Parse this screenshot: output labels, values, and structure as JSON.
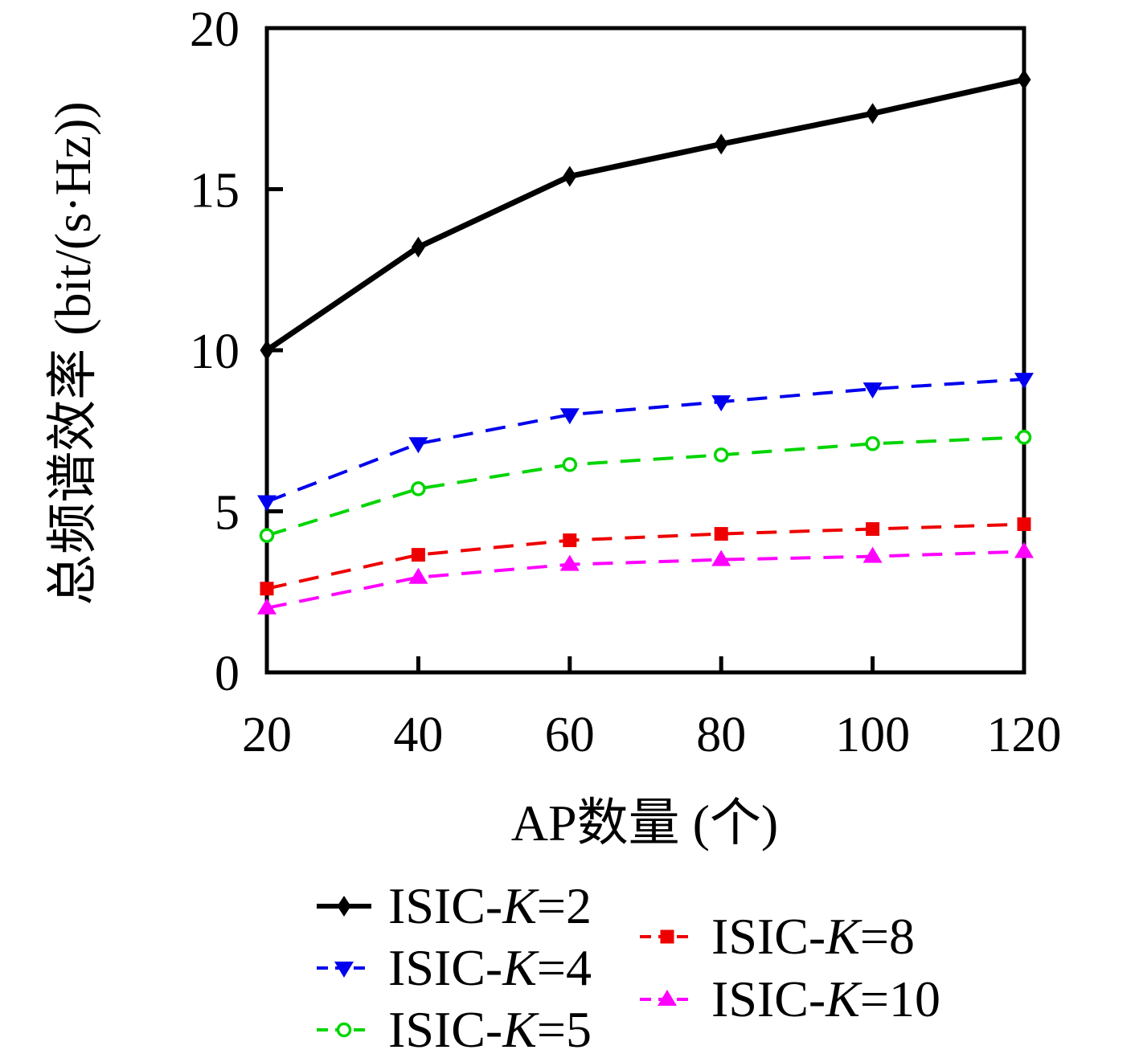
{
  "figure": {
    "background": "#ffffff",
    "text_color": "#000000"
  },
  "chart_data": {
    "type": "line",
    "title": "",
    "xlabel": "AP数量 (个)",
    "ylabel": "总频谱效率 (bit/(s·Hz))",
    "x": [
      20,
      40,
      60,
      80,
      100,
      120
    ],
    "xlim": [
      20,
      120
    ],
    "ylim": [
      0,
      20
    ],
    "xticks": [
      20,
      40,
      60,
      80,
      100,
      120
    ],
    "yticks": [
      0,
      5,
      10,
      15,
      20
    ],
    "grid": false,
    "legend_position": "below-plot-two-columns",
    "series": [
      {
        "name": "ISIC-K=2",
        "color": "#000000",
        "line_style": "solid",
        "marker": "diamond",
        "values": [
          10.0,
          13.2,
          15.4,
          16.4,
          17.35,
          18.4
        ]
      },
      {
        "name": "ISIC-K=4",
        "color": "#0000ee",
        "line_style": "dashed",
        "marker": "triangle-down",
        "values": [
          5.3,
          7.1,
          8.0,
          8.4,
          8.8,
          9.1
        ]
      },
      {
        "name": "ISIC-K=5",
        "color": "#00d500",
        "line_style": "dashed",
        "marker": "circle-open",
        "values": [
          4.25,
          5.7,
          6.45,
          6.75,
          7.1,
          7.3
        ]
      },
      {
        "name": "ISIC-K=8",
        "color": "#ee0000",
        "line_style": "dashed",
        "marker": "square",
        "values": [
          2.6,
          3.65,
          4.1,
          4.3,
          4.45,
          4.6
        ]
      },
      {
        "name": "ISIC-K=10",
        "color": "#ff00ff",
        "line_style": "dashed",
        "marker": "triangle-up",
        "values": [
          2.0,
          2.95,
          3.35,
          3.5,
          3.6,
          3.75
        ]
      }
    ],
    "legend_columns": [
      [
        0,
        1,
        2
      ],
      [
        3,
        4
      ]
    ]
  }
}
